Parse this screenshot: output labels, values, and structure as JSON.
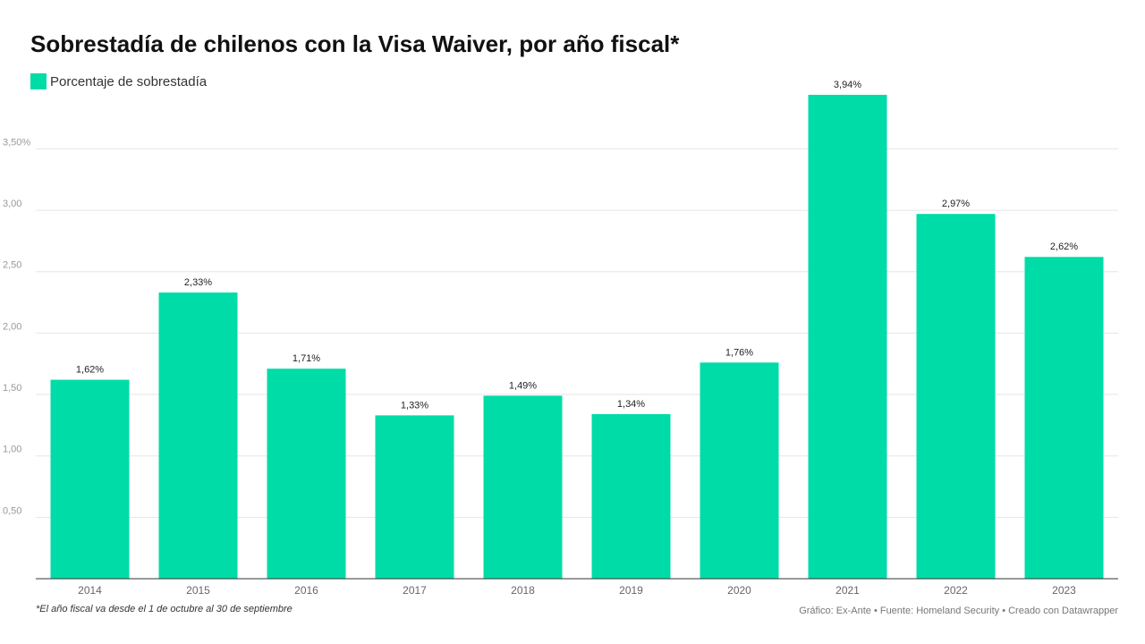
{
  "header": {
    "title": "Sobrestadía de chilenos con la Visa Waiver, por año fiscal*"
  },
  "colors": {
    "bar": "#00dca7",
    "grid": "#e6e6e6",
    "axis": "#333333",
    "tick_text": "#999999",
    "label_text": "#222222"
  },
  "footer": {
    "note": "*El año fiscal va desde el 1 de octubre al 30 de septiembre",
    "credits": "Gráfico: Ex-Ante • Fuente: Homeland Security • Creado con Datawrapper"
  },
  "chart_data": {
    "type": "bar",
    "title": "Sobrestadía de chilenos con la Visa Waiver, por año fiscal*",
    "categories": [
      "2014",
      "2015",
      "2016",
      "2017",
      "2018",
      "2019",
      "2020",
      "2021",
      "2022",
      "2023"
    ],
    "series": [
      {
        "name": "Porcentaje de sobrestadía",
        "values": [
          1.62,
          2.33,
          1.71,
          1.33,
          1.49,
          1.34,
          1.76,
          3.94,
          2.97,
          2.62
        ],
        "labels": [
          "1,62%",
          "2,33%",
          "1,71%",
          "1,33%",
          "1,49%",
          "1,34%",
          "1,76%",
          "3,94%",
          "2,97%",
          "2,62%"
        ]
      }
    ],
    "yticks": [
      0.5,
      1.0,
      1.5,
      2.0,
      2.5,
      3.0,
      3.5
    ],
    "ytick_labels": [
      "0,50",
      "1,00",
      "1,50",
      "2,00",
      "2,50",
      "3,00",
      "3,50%"
    ],
    "ylim": [
      0,
      3.94
    ],
    "xlabel": "",
    "ylabel": "",
    "grid": true,
    "legend": "top-left"
  }
}
